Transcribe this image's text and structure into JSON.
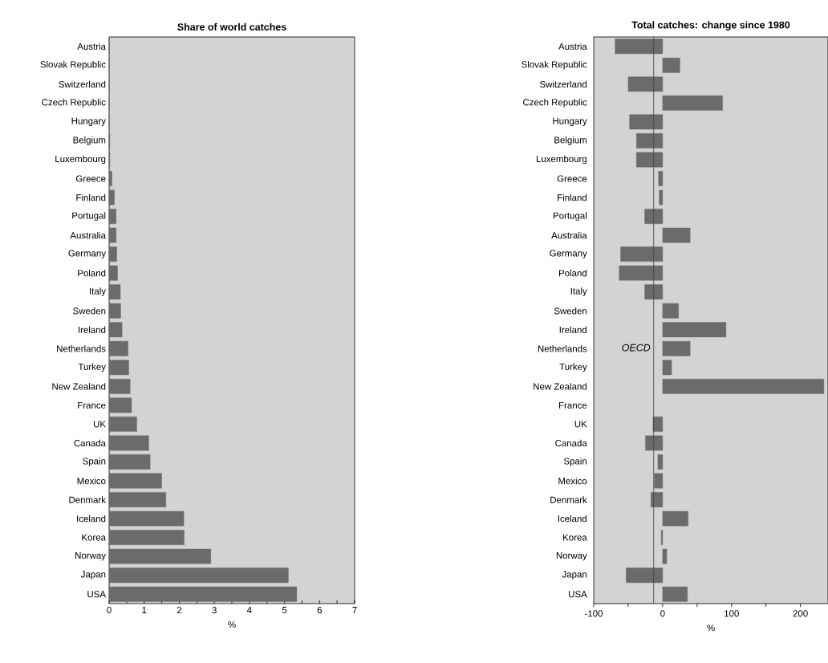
{
  "chart_data": [
    {
      "type": "bar",
      "orientation": "horizontal",
      "title": "Share of world catches",
      "xlabel": "%",
      "categories": [
        "Austria",
        "Slovak Republic",
        "Switzerland",
        "Czech Republic",
        "Hungary",
        "Belgium",
        "Luxembourg",
        "Greece",
        "Finland",
        "Portugal",
        "Australia",
        "Germany",
        "Poland",
        "Italy",
        "Sweden",
        "Ireland",
        "Netherlands",
        "Turkey",
        "New Zealand",
        "France",
        "UK",
        "Canada",
        "Spain",
        "Mexico",
        "Denmark",
        "Iceland",
        "Korea",
        "Norway",
        "Japan",
        "USA"
      ],
      "values": [
        0,
        0,
        0,
        0,
        0,
        0.02,
        0.02,
        0.08,
        0.15,
        0.2,
        0.2,
        0.22,
        0.24,
        0.32,
        0.33,
        0.37,
        0.54,
        0.56,
        0.6,
        0.64,
        0.79,
        1.13,
        1.17,
        1.5,
        1.62,
        2.13,
        2.14,
        2.9,
        5.11,
        5.35
      ],
      "color": "#6b6b6b",
      "xlim": [
        0,
        7
      ],
      "xticks": [
        0,
        {
          "value": 0.5,
          "label": null
        },
        1,
        {
          "value": 1.5,
          "label": null
        },
        2,
        {
          "value": 2.5,
          "label": null
        },
        3,
        {
          "value": 3.5,
          "label": null
        },
        4,
        {
          "value": 4.5,
          "label": null
        },
        5,
        {
          "value": 5.5,
          "label": null
        },
        6,
        {
          "value": 6.5,
          "label": null
        },
        7
      ]
    },
    {
      "type": "bar",
      "orientation": "horizontal",
      "title": "Total catches: change since 1980",
      "xlabel": "%",
      "categories": [
        "Austria",
        "Slovak Republic",
        "Switzerland",
        "Czech Republic",
        "Hungary",
        "Belgium",
        "Luxembourg",
        "Greece",
        "Finland",
        "Portugal",
        "Australia",
        "Germany",
        "Poland",
        "Italy",
        "Sweden",
        "Ireland",
        "Netherlands",
        "Turkey",
        "New Zealand",
        "France",
        "UK",
        "Canada",
        "Spain",
        "Mexico",
        "Denmark",
        "Iceland",
        "Korea",
        "Norway",
        "Japan",
        "USA"
      ],
      "values": [
        -69,
        25,
        -50,
        87,
        -48,
        -38,
        -38,
        -6,
        -5,
        -26,
        40,
        -61,
        -63,
        -26,
        23,
        92,
        40,
        13,
        234,
        null,
        -14,
        -25,
        -7,
        -12,
        -17,
        37,
        -2,
        6,
        -53,
        36
      ],
      "color": "#6b6b6b",
      "xlim": [
        -100,
        240
      ],
      "xticks": [
        -100,
        {
          "value": -50,
          "label": null
        },
        0,
        {
          "value": 50,
          "label": null
        },
        100,
        {
          "value": 150,
          "label": null
        },
        200
      ],
      "ref_lines": [
        {
          "axis": "x",
          "value": -13,
          "label": "OECD"
        }
      ]
    }
  ]
}
